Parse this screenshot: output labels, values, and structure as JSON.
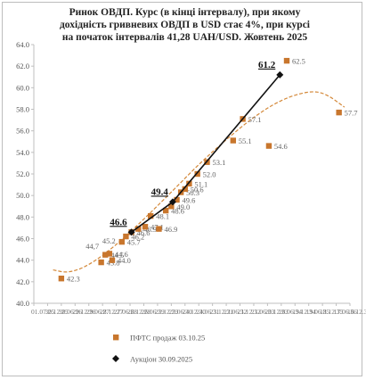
{
  "title_lines": [
    "Ринок ОВДП. Курс (в кінці інтервалу), при якому",
    "дохідність гривневих ОВДП в USD стає 4%, при курсі",
    "на початок інтервалів 41,28 UAH/USD. Жовтень 2025"
  ],
  "chart_data": {
    "type": "scatter",
    "title": "Ринок ОВДП. Курс (в кінці інтервалу), при якому дохідність гривневих ОВДП в USD стає 4%, при курсі на початок інтервалів 41,28 UAH/USD. Жовтень 2025",
    "xlabel": "",
    "ylabel": "",
    "ylim": [
      40.0,
      64.0
    ],
    "y_ticks": [
      "40.0",
      "42.0",
      "44.0",
      "46.0",
      "48.0",
      "50.0",
      "52.0",
      "54.0",
      "56.0",
      "58.0",
      "60.0",
      "62.0",
      "64.0"
    ],
    "x_tick_labels": [
      "01.07.25",
      "30.12.25",
      "30.06.26",
      "29.12.26",
      "29.06.27",
      "28.12.27",
      "27.06.28",
      "26.12.28",
      "26.06.29",
      "25.12.29",
      "25.06.30",
      "24.12.30",
      "24.06.31",
      "23.12.31",
      "22.06.32",
      "21.12.32",
      "21.06.33",
      "20.12.33",
      "20.06.34",
      "19.12.34",
      "19.06.35",
      "18.12.35",
      "17.06.36",
      "16.12.36"
    ],
    "legend_position": "bottom",
    "grid": false,
    "series": [
      {
        "name": "ПФТС продаж 03.10.25",
        "marker": "square",
        "color": "#c8762d",
        "points": [
          {
            "x": 2.0,
            "y": 42.3,
            "label": "42.3"
          },
          {
            "x": 4.9,
            "y": 43.8,
            "label": "43.8"
          },
          {
            "x": 5.2,
            "y": 44.5,
            "label": "44.5"
          },
          {
            "x": 5.5,
            "y": 44.6,
            "label": "44.6"
          },
          {
            "x": 5.7,
            "y": 44.0,
            "label": "44.0"
          },
          {
            "x": 6.4,
            "y": 45.7,
            "label": "45.7"
          },
          {
            "x": 6.7,
            "y": 46.2,
            "label": "46.2"
          },
          {
            "x": 7.1,
            "y": 46.6,
            "label": "46.6"
          },
          {
            "x": 7.6,
            "y": 46.9,
            "label": "46.9"
          },
          {
            "x": 8.1,
            "y": 47.1,
            "label": "47.1"
          },
          {
            "x": 8.5,
            "y": 48.1,
            "label": "48.1"
          },
          {
            "x": 9.1,
            "y": 46.9,
            "label": "46.9"
          },
          {
            "x": 9.6,
            "y": 48.6,
            "label": "48.6"
          },
          {
            "x": 10.0,
            "y": 49.0,
            "label": "49.0"
          },
          {
            "x": 10.4,
            "y": 49.6,
            "label": "49.6"
          },
          {
            "x": 10.7,
            "y": 50.3,
            "label": "50.3"
          },
          {
            "x": 11.0,
            "y": 50.6,
            "label": "50.6"
          },
          {
            "x": 11.3,
            "y": 51.1,
            "label": "51.1"
          },
          {
            "x": 11.9,
            "y": 52.0,
            "label": "52.0"
          },
          {
            "x": 12.6,
            "y": 53.1,
            "label": "53.1"
          },
          {
            "x": 14.5,
            "y": 55.1,
            "label": "55.1"
          },
          {
            "x": 15.2,
            "y": 57.1,
            "label": "57.1"
          },
          {
            "x": 17.1,
            "y": 54.6,
            "label": "54.6"
          },
          {
            "x": 18.4,
            "y": 62.5,
            "label": "62.5"
          },
          {
            "x": 22.2,
            "y": 57.7,
            "label": "57.7"
          }
        ]
      },
      {
        "name": "Аукціон 30.09.2025",
        "marker": "diamond",
        "color": "#111111",
        "line": true,
        "points": [
          {
            "x": 7.1,
            "y": 46.6,
            "label": "46.6"
          },
          {
            "x": 10.1,
            "y": 49.4,
            "label": "49.4"
          },
          {
            "x": 17.9,
            "y": 61.2,
            "label": "61.2"
          }
        ]
      }
    ],
    "trendline": {
      "type": "polynomial",
      "color": "#d4893a",
      "points": [
        [
          1.4,
          43.1
        ],
        [
          2.5,
          42.8
        ],
        [
          4,
          43.5
        ],
        [
          6,
          45.4
        ],
        [
          8,
          47.8
        ],
        [
          10,
          50.3
        ],
        [
          12,
          52.9
        ],
        [
          14,
          55.2
        ],
        [
          16,
          57.3
        ],
        [
          18,
          58.9
        ],
        [
          20,
          59.7
        ],
        [
          21.2,
          59.5
        ],
        [
          22.6,
          58.2
        ]
      ]
    },
    "other_labels": [
      {
        "x": 5.0,
        "y": 44.7,
        "text": "44,7"
      },
      {
        "x": 6.2,
        "y": 45.2,
        "text": "45.2"
      }
    ]
  }
}
